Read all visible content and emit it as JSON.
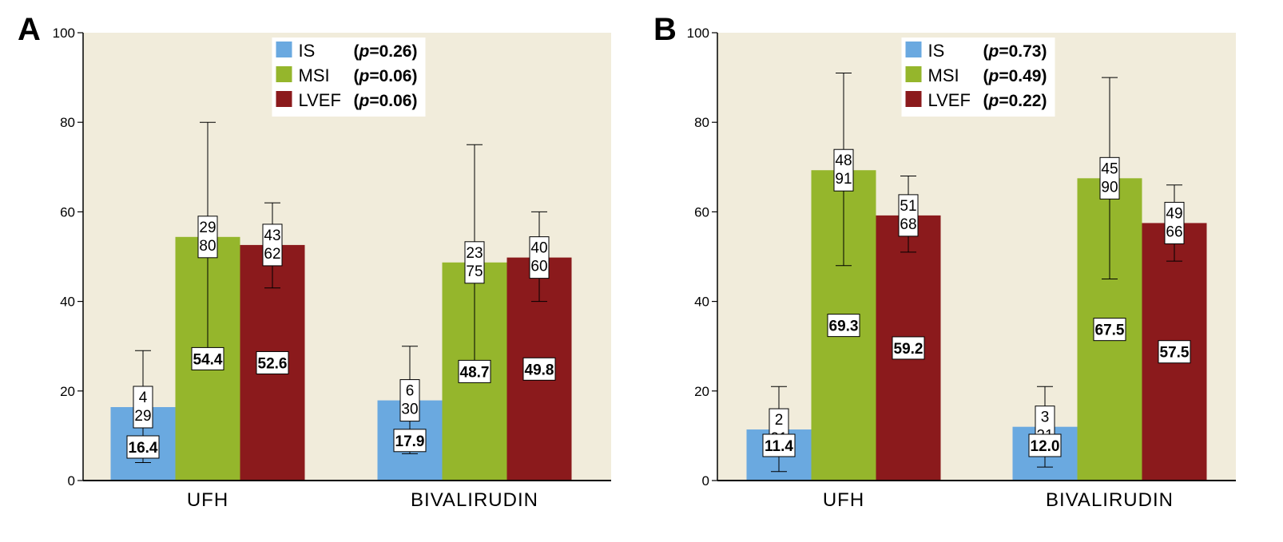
{
  "chart_data": [
    {
      "panel": "A",
      "type": "bar",
      "categories": [
        "UFH",
        "BIVALIRUDIN"
      ],
      "ylim": [
        0,
        100
      ],
      "yticks": [
        0,
        20,
        40,
        60,
        80,
        100
      ],
      "grid": false,
      "legend_position": "top-center",
      "series": [
        {
          "name": "IS",
          "p_label": "p",
          "p_value": "=0.26",
          "color": "#6aa9e0",
          "values": [
            16.4,
            17.9
          ],
          "value_labels": [
            "16.4",
            "17.9"
          ],
          "range": [
            [
              4,
              29
            ],
            [
              6,
              30
            ]
          ],
          "range_labels": [
            [
              "4",
              "29"
            ],
            [
              "6",
              "30"
            ]
          ]
        },
        {
          "name": "MSI",
          "p_label": "p",
          "p_value": "=0.06",
          "color": "#95b62c",
          "values": [
            54.4,
            48.7
          ],
          "value_labels": [
            "54.4",
            "48.7"
          ],
          "range": [
            [
              29,
              80
            ],
            [
              23,
              75
            ]
          ],
          "range_labels": [
            [
              "29",
              "80"
            ],
            [
              "23",
              "75"
            ]
          ]
        },
        {
          "name": "LVEF",
          "p_label": "p",
          "p_value": "=0.06",
          "color": "#8b1a1c",
          "values": [
            52.6,
            49.8
          ],
          "value_labels": [
            "52.6",
            "49.8"
          ],
          "range": [
            [
              43,
              62
            ],
            [
              40,
              60
            ]
          ],
          "range_labels": [
            [
              "43",
              "62"
            ],
            [
              "40",
              "60"
            ]
          ]
        }
      ]
    },
    {
      "panel": "B",
      "type": "bar",
      "categories": [
        "UFH",
        "BIVALIRUDIN"
      ],
      "ylim": [
        0,
        100
      ],
      "yticks": [
        0,
        20,
        40,
        60,
        80,
        100
      ],
      "grid": false,
      "legend_position": "top-center",
      "series": [
        {
          "name": "IS",
          "p_label": "p",
          "p_value": "=0.73",
          "color": "#6aa9e0",
          "values": [
            11.4,
            12.0
          ],
          "value_labels": [
            "11.4",
            "12.0"
          ],
          "range": [
            [
              2,
              21
            ],
            [
              3,
              21
            ]
          ],
          "range_labels": [
            [
              "2",
              "21"
            ],
            [
              "3",
              "21"
            ]
          ]
        },
        {
          "name": "MSI",
          "p_label": "p",
          "p_value": "=0.49",
          "color": "#95b62c",
          "values": [
            69.3,
            67.5
          ],
          "value_labels": [
            "69.3",
            "67.5"
          ],
          "range": [
            [
              48,
              91
            ],
            [
              45,
              90
            ]
          ],
          "range_labels": [
            [
              "48",
              "91"
            ],
            [
              "45",
              "90"
            ]
          ]
        },
        {
          "name": "LVEF",
          "p_label": "p",
          "p_value": "=0.22",
          "color": "#8b1a1c",
          "values": [
            59.2,
            57.5
          ],
          "value_labels": [
            "59.2",
            "57.5"
          ],
          "range": [
            [
              51,
              68
            ],
            [
              49,
              66
            ]
          ],
          "range_labels": [
            [
              "51",
              "68"
            ],
            [
              "49",
              "66"
            ]
          ]
        }
      ]
    }
  ],
  "colors": {
    "plot_background": "#f1ecdb",
    "axis": "#000000"
  }
}
